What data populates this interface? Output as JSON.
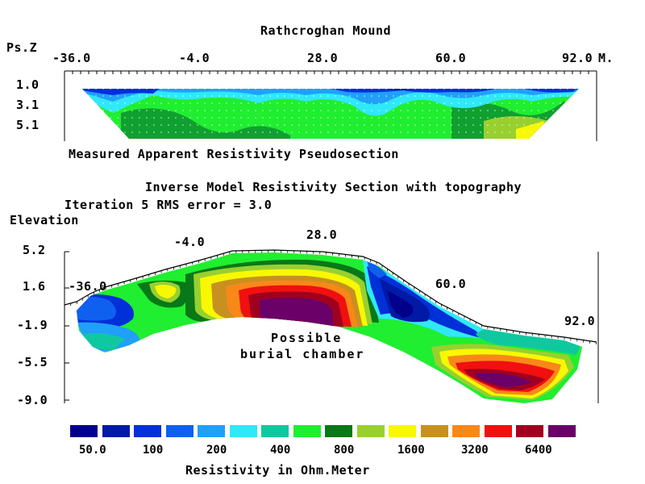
{
  "title": "Rathcroghan Mound",
  "pseudo": {
    "y_axis_label": "Ps.Z",
    "x_ticks": [
      "-36.0",
      "-4.0",
      "28.0",
      "60.0",
      "92.0"
    ],
    "x_unit": "M.",
    "depth_ticks": [
      "1.0",
      "3.1",
      "5.1"
    ],
    "caption": "Measured Apparent Resistivity Pseudosection"
  },
  "inverse": {
    "heading": "Inverse Model Resistivity Section with topography",
    "iteration_text": "Iteration 5 RMS error = 3.0",
    "y_axis_label": "Elevation",
    "elevation_ticks": [
      "5.2",
      "1.6",
      "-1.9",
      "-5.5",
      "-9.0"
    ],
    "x_ticks": [
      "-36.0",
      "-4.0",
      "28.0",
      "60.0",
      "92.0"
    ],
    "annotation_line1": "Possible",
    "annotation_line2": "burial chamber"
  },
  "legend": {
    "colors": [
      "#00008b",
      "#001aa6",
      "#0030d8",
      "#1060f0",
      "#20a0f8",
      "#30e8f8",
      "#10c8a0",
      "#20ee30",
      "#087818",
      "#98d030",
      "#f8f800",
      "#c89020",
      "#f88818",
      "#f01010",
      "#a00020",
      "#6a0068"
    ],
    "labels": [
      "50.0",
      "100",
      "200",
      "400",
      "800",
      "1600",
      "3200",
      "6400"
    ],
    "caption": "Resistivity in Ohm.Meter"
  }
}
